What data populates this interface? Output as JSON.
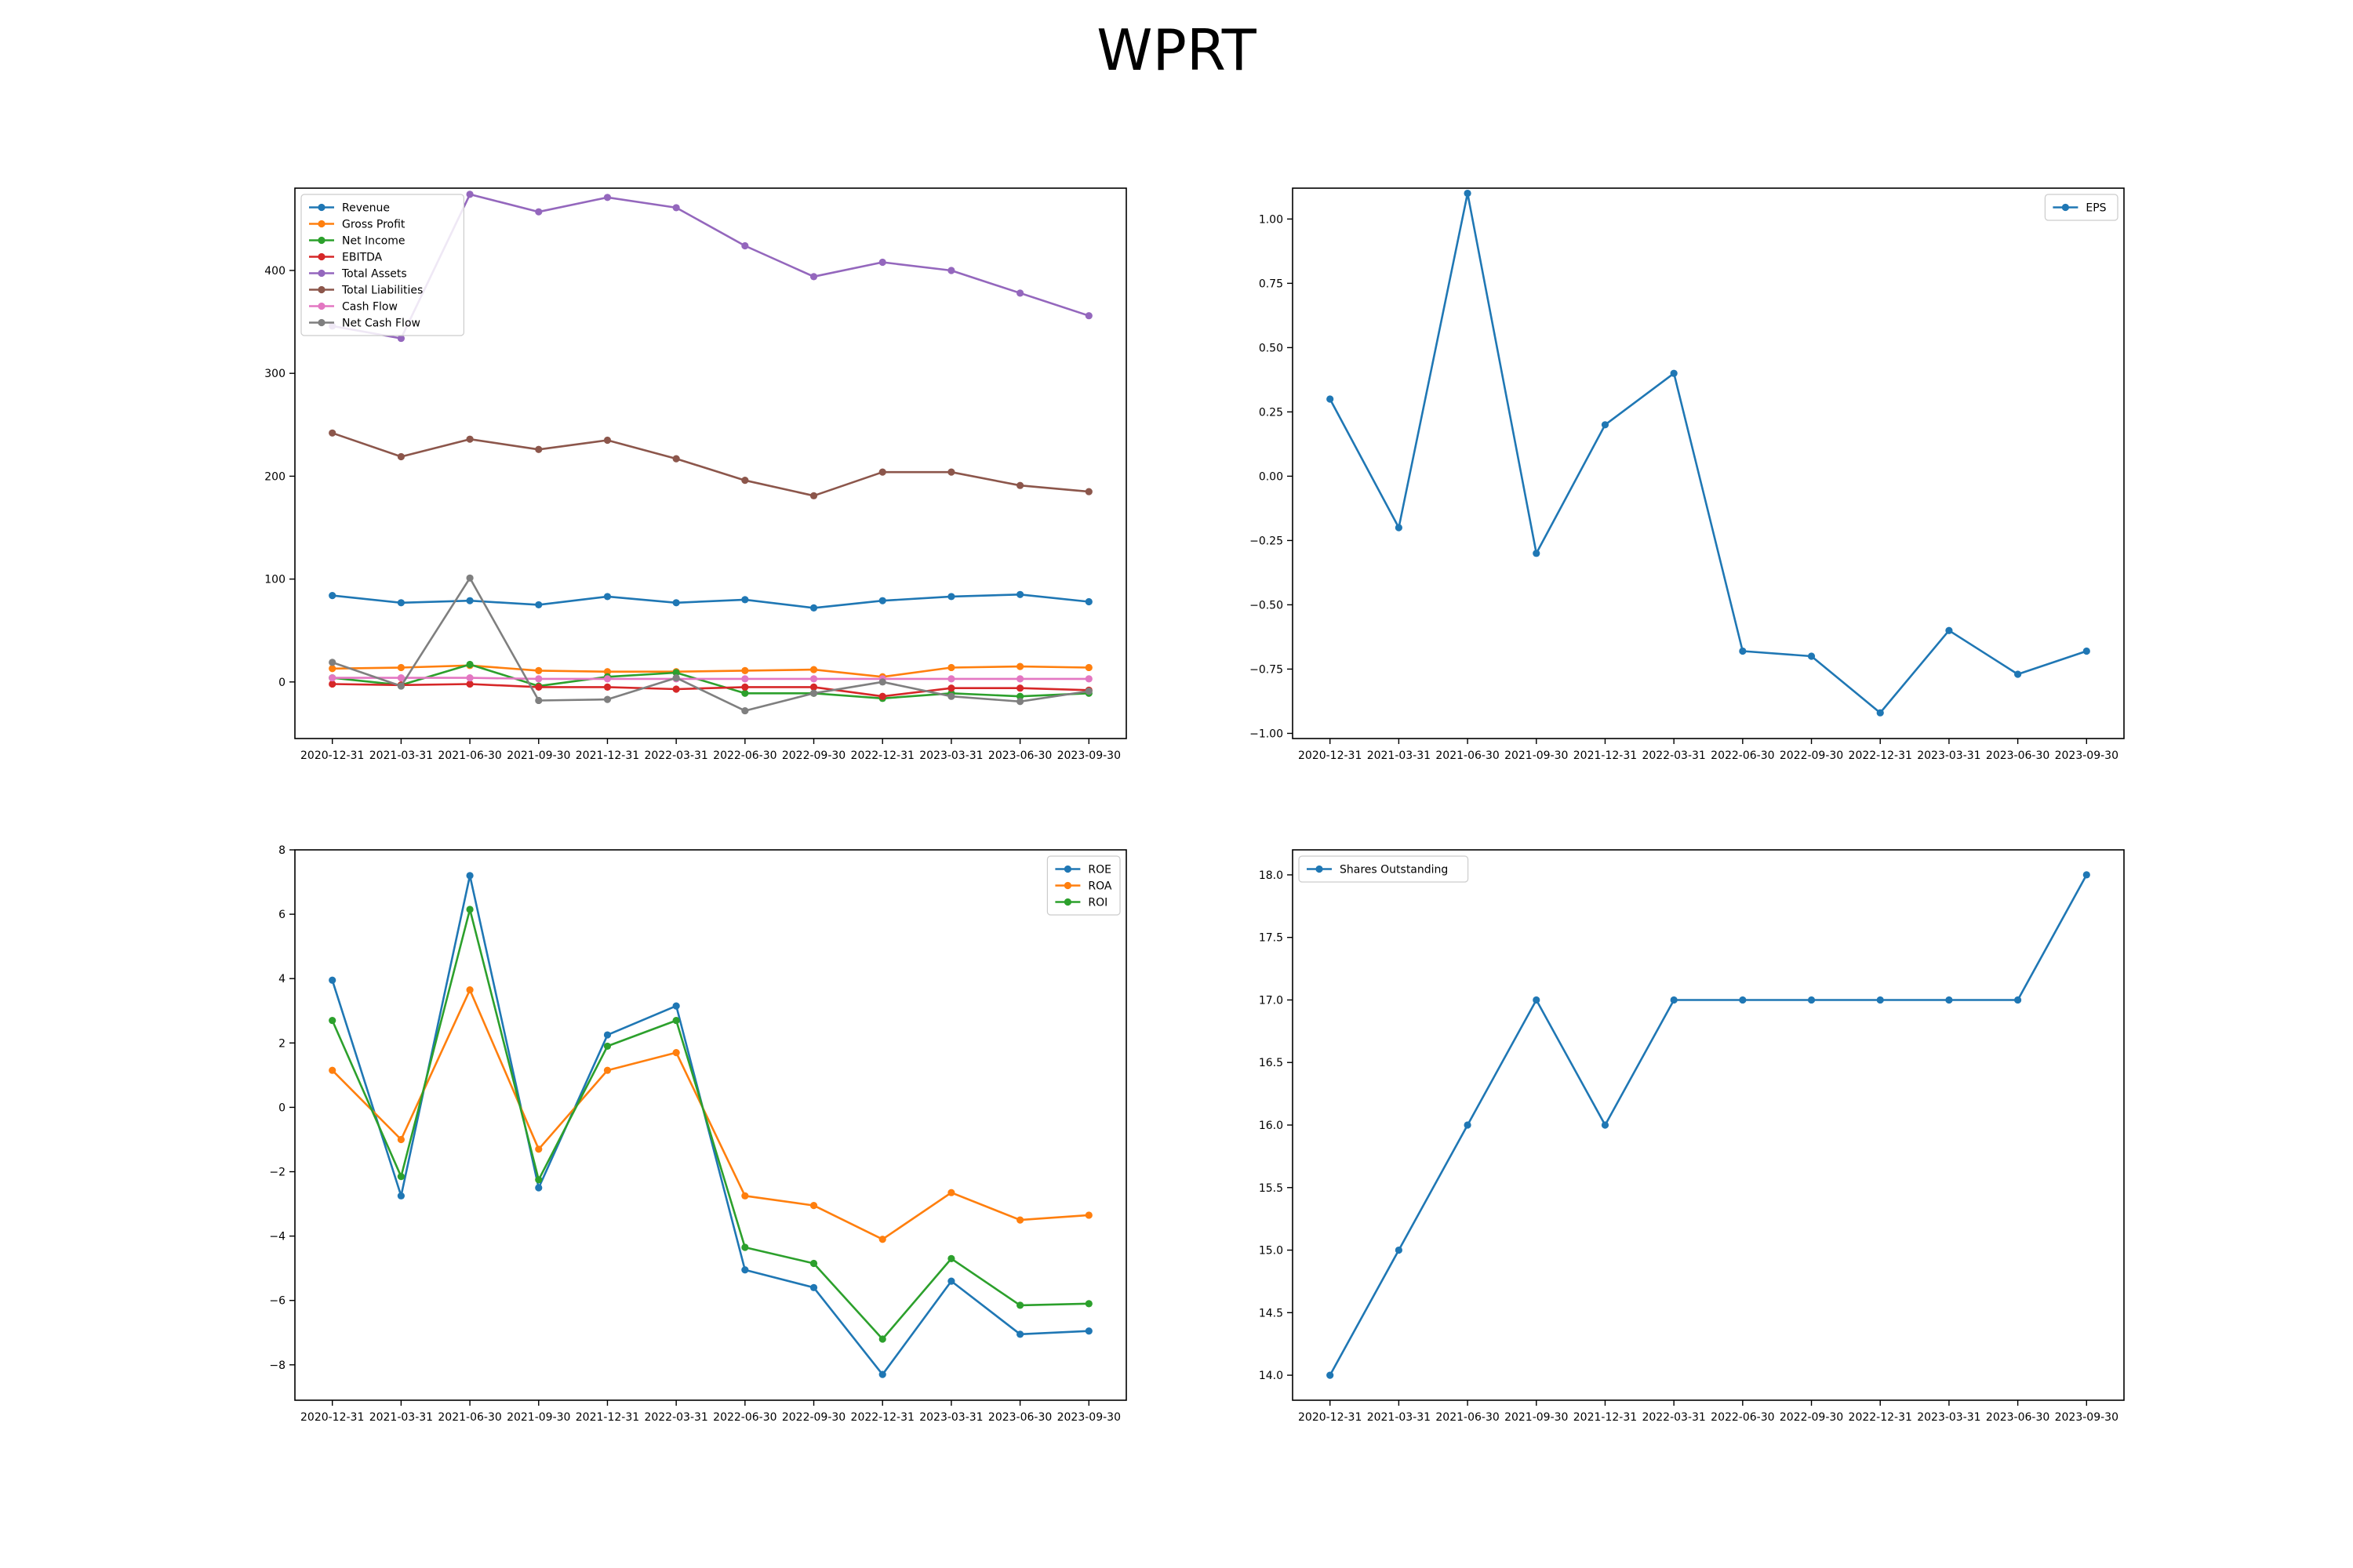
{
  "title": "WPRT",
  "chart_data": [
    {
      "type": "line",
      "categories": [
        "2020-12-31",
        "2021-03-31",
        "2021-06-30",
        "2021-09-30",
        "2021-12-31",
        "2022-03-31",
        "2022-06-30",
        "2022-09-30",
        "2022-12-31",
        "2023-03-31",
        "2023-06-30",
        "2023-09-30"
      ],
      "ylim": [
        -55,
        480
      ],
      "yticks": [
        0,
        100,
        200,
        300,
        400
      ],
      "ytick_labels": [
        "0",
        "100",
        "200",
        "300",
        "400"
      ],
      "legend_position": "upper-left",
      "series": [
        {
          "name": "Revenue",
          "color": "#1f77b4",
          "values": [
            84,
            77,
            79,
            75,
            83,
            77,
            80,
            72,
            79,
            83,
            85,
            78
          ]
        },
        {
          "name": "Gross Profit",
          "color": "#ff7f0e",
          "values": [
            13,
            14,
            16,
            11,
            10,
            10,
            11,
            12,
            5,
            14,
            15,
            14
          ]
        },
        {
          "name": "Net Income",
          "color": "#2ca02c",
          "values": [
            4,
            -3,
            17,
            -4,
            5,
            9,
            -11,
            -11,
            -16,
            -11,
            -14,
            -11
          ]
        },
        {
          "name": "EBITDA",
          "color": "#d62728",
          "values": [
            -2,
            -3,
            -2,
            -5,
            -5,
            -7,
            -5,
            -5,
            -14,
            -6,
            -6,
            -8
          ]
        },
        {
          "name": "Total Assets",
          "color": "#9467bd",
          "values": [
            346,
            334,
            474,
            457,
            471,
            461,
            424,
            394,
            408,
            400,
            378,
            356
          ]
        },
        {
          "name": "Total Liabilities",
          "color": "#8c564b",
          "values": [
            242,
            219,
            236,
            226,
            235,
            217,
            196,
            181,
            204,
            204,
            191,
            185
          ]
        },
        {
          "name": "Cash Flow",
          "color": "#e377c2",
          "values": [
            4,
            4,
            4,
            3,
            3,
            3,
            3,
            3,
            3,
            3,
            3,
            3
          ]
        },
        {
          "name": "Net Cash Flow",
          "color": "#7f7f7f",
          "values": [
            19,
            -4,
            101,
            -18,
            -17,
            4,
            -28,
            -11,
            0,
            -14,
            -19,
            -9
          ]
        }
      ]
    },
    {
      "type": "line",
      "categories": [
        "2020-12-31",
        "2021-03-31",
        "2021-06-30",
        "2021-09-30",
        "2021-12-31",
        "2022-03-31",
        "2022-06-30",
        "2022-09-30",
        "2022-12-31",
        "2023-03-31",
        "2023-06-30",
        "2023-09-30"
      ],
      "ylim": [
        -1.02,
        1.12
      ],
      "yticks": [
        -1.0,
        -0.75,
        -0.5,
        -0.25,
        0.0,
        0.25,
        0.5,
        0.75,
        1.0
      ],
      "ytick_labels": [
        "−1.00",
        "−0.75",
        "−0.50",
        "−0.25",
        "0.00",
        "0.25",
        "0.50",
        "0.75",
        "1.00"
      ],
      "legend_position": "upper-right",
      "series": [
        {
          "name": "EPS",
          "color": "#1f77b4",
          "values": [
            0.3,
            -0.2,
            1.1,
            -0.3,
            0.2,
            0.4,
            -0.68,
            -0.7,
            -0.92,
            -0.6,
            -0.77,
            -0.68
          ]
        }
      ]
    },
    {
      "type": "line",
      "categories": [
        "2020-12-31",
        "2021-03-31",
        "2021-06-30",
        "2021-09-30",
        "2021-12-31",
        "2022-03-31",
        "2022-06-30",
        "2022-09-30",
        "2022-12-31",
        "2023-03-31",
        "2023-06-30",
        "2023-09-30"
      ],
      "ylim": [
        -9.1,
        8.0
      ],
      "yticks": [
        -8,
        -6,
        -4,
        -2,
        0,
        2,
        4,
        6,
        8
      ],
      "ytick_labels": [
        "−8",
        "−6",
        "−4",
        "−2",
        "0",
        "2",
        "4",
        "6",
        "8"
      ],
      "legend_position": "upper-right",
      "series": [
        {
          "name": "ROE",
          "color": "#1f77b4",
          "values": [
            3.95,
            -2.75,
            7.2,
            -2.5,
            2.25,
            3.15,
            -5.05,
            -5.6,
            -8.3,
            -5.4,
            -7.05,
            -6.95
          ]
        },
        {
          "name": "ROA",
          "color": "#ff7f0e",
          "values": [
            1.15,
            -1.0,
            3.65,
            -1.3,
            1.15,
            1.7,
            -2.75,
            -3.05,
            -4.1,
            -2.65,
            -3.5,
            -3.35
          ]
        },
        {
          "name": "ROI",
          "color": "#2ca02c",
          "values": [
            2.7,
            -2.15,
            6.15,
            -2.25,
            1.9,
            2.7,
            -4.35,
            -4.85,
            -7.2,
            -4.7,
            -6.15,
            -6.1
          ]
        }
      ]
    },
    {
      "type": "line",
      "categories": [
        "2020-12-31",
        "2021-03-31",
        "2021-06-30",
        "2021-09-30",
        "2021-12-31",
        "2022-03-31",
        "2022-06-30",
        "2022-09-30",
        "2022-12-31",
        "2023-03-31",
        "2023-06-30",
        "2023-09-30"
      ],
      "ylim": [
        13.8,
        18.2
      ],
      "yticks": [
        14.0,
        14.5,
        15.0,
        15.5,
        16.0,
        16.5,
        17.0,
        17.5,
        18.0
      ],
      "ytick_labels": [
        "14.0",
        "14.5",
        "15.0",
        "15.5",
        "16.0",
        "16.5",
        "17.0",
        "17.5",
        "18.0"
      ],
      "legend_position": "upper-left",
      "series": [
        {
          "name": "Shares Outstanding",
          "color": "#1f77b4",
          "values": [
            14,
            15,
            16,
            17,
            16,
            17,
            17,
            17,
            17,
            17,
            17,
            18
          ]
        }
      ]
    }
  ]
}
